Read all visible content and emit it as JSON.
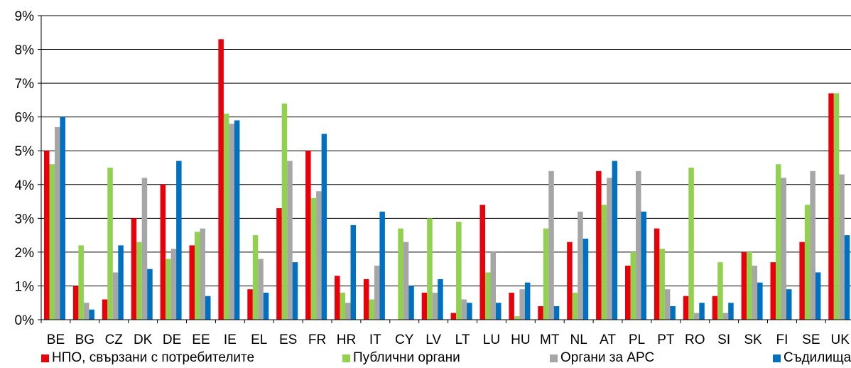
{
  "chart_data": {
    "type": "bar",
    "title": "",
    "xlabel": "",
    "ylabel": "",
    "ylim": [
      0,
      9
    ],
    "y_ticks": [
      "0%",
      "1%",
      "2%",
      "3%",
      "4%",
      "5%",
      "6%",
      "7%",
      "8%",
      "9%"
    ],
    "grid": true,
    "legend_position": "bottom",
    "categories": [
      "BE",
      "BG",
      "CZ",
      "DK",
      "DE",
      "EE",
      "IE",
      "EL",
      "ES",
      "FR",
      "HR",
      "IT",
      "CY",
      "LV",
      "LT",
      "LU",
      "HU",
      "MT",
      "NL",
      "AT",
      "PL",
      "PT",
      "RO",
      "SI",
      "SK",
      "FI",
      "SE",
      "UK"
    ],
    "series": [
      {
        "name": "НПО, свързани с  потребителите",
        "color": "#e8000b",
        "values": [
          5.0,
          1.0,
          0.6,
          3.0,
          4.0,
          2.2,
          8.3,
          0.9,
          3.3,
          5.0,
          1.3,
          1.2,
          0,
          0.8,
          0.2,
          3.4,
          0.8,
          0.4,
          2.3,
          4.4,
          1.6,
          2.7,
          0.7,
          0.7,
          2.0,
          1.7,
          2.3,
          6.7
        ]
      },
      {
        "name": "Публични органи",
        "color": "#92d050",
        "values": [
          4.6,
          2.2,
          4.5,
          2.3,
          1.8,
          2.6,
          6.1,
          2.5,
          6.4,
          3.6,
          0.8,
          0.6,
          2.7,
          3.0,
          2.9,
          1.4,
          0.1,
          2.7,
          0.8,
          3.4,
          2.0,
          2.1,
          4.5,
          1.7,
          2.0,
          4.6,
          3.4,
          6.7
        ]
      },
      {
        "name": "Органи за АРС",
        "color": "#a6a6a6",
        "values": [
          5.7,
          0.5,
          1.4,
          4.2,
          2.1,
          2.7,
          5.8,
          1.8,
          4.7,
          3.8,
          0.5,
          1.6,
          2.3,
          0.8,
          0.6,
          2.0,
          0.9,
          4.4,
          3.2,
          4.2,
          4.4,
          0.9,
          0.2,
          0.2,
          1.6,
          4.2,
          4.4,
          4.3
        ]
      },
      {
        "name": "Съдилища",
        "color": "#0070c0",
        "values": [
          6.0,
          0.3,
          2.2,
          1.5,
          4.7,
          0.7,
          5.9,
          0.8,
          1.7,
          5.5,
          2.8,
          3.2,
          1.0,
          1.2,
          0.5,
          0.5,
          1.1,
          0.4,
          2.4,
          4.7,
          3.2,
          0.4,
          0.5,
          0.5,
          1.1,
          0.9,
          1.4,
          2.5
        ]
      }
    ]
  }
}
